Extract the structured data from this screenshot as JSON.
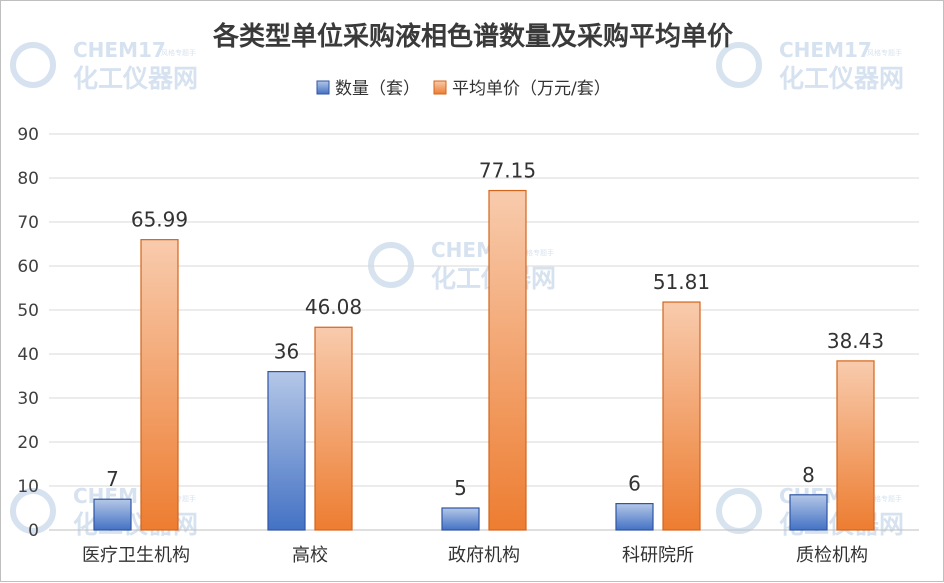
{
  "watermark": {
    "brand": "CHEM17",
    "tagline": "风格专题手",
    "name": "化工仪器网"
  },
  "chart_data": {
    "type": "bar",
    "title": "各类型单位采购液相色谱数量及采购平均单价",
    "categories": [
      "医疗卫生机构",
      "高校",
      "政府机构",
      "科研院所",
      "质检机构"
    ],
    "series": [
      {
        "name": "数量（套）",
        "values": [
          7,
          36,
          5,
          6,
          8
        ],
        "color": "#4472c4",
        "color_light": "#b4c7e7",
        "border": "#2f55a4"
      },
      {
        "name": "平均单价（万元/套）",
        "values": [
          65.99,
          46.08,
          77.15,
          51.81,
          38.43
        ],
        "color": "#ed7d31",
        "color_light": "#f8cbad",
        "border": "#d4651a"
      }
    ],
    "data_labels": [
      [
        "7",
        "36",
        "5",
        "6",
        "8"
      ],
      [
        "65.99",
        "46.08",
        "77.15",
        "51.81",
        "38.43"
      ]
    ],
    "ylim": [
      0,
      90
    ],
    "yticks": [
      0,
      10,
      20,
      30,
      40,
      50,
      60,
      70,
      80,
      90
    ],
    "grid": true,
    "legend_position": "top"
  }
}
